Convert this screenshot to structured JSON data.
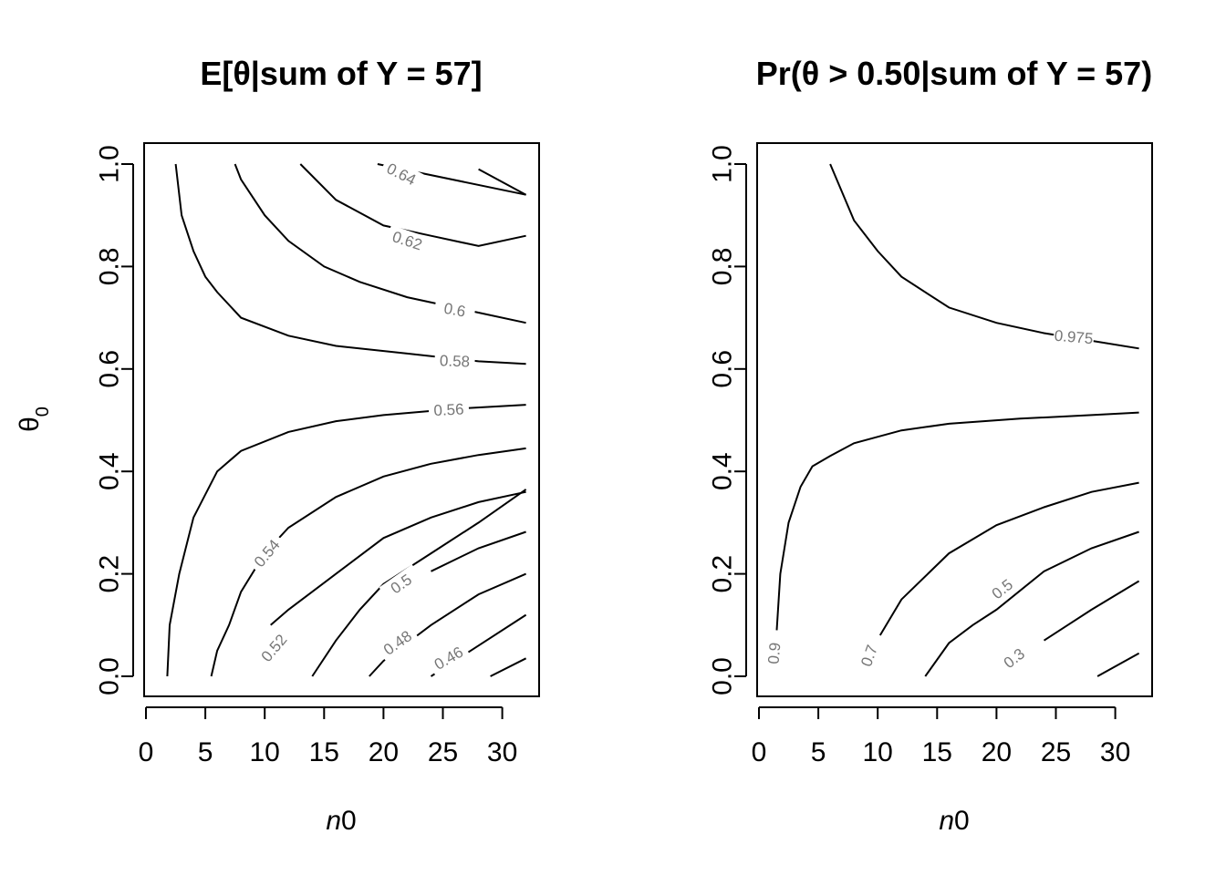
{
  "chart_data": [
    {
      "type": "contour",
      "title": "E[θ|sum of Y = 57]",
      "xlabel": "n0",
      "ylabel": "θ0",
      "xlim": [
        0,
        32
      ],
      "ylim": [
        0,
        1
      ],
      "xticks": [
        "0",
        "5",
        "10",
        "15",
        "20",
        "25",
        "30"
      ],
      "yticks": [
        "0.0",
        "0.2",
        "0.4",
        "0.6",
        "0.8",
        "1.0"
      ],
      "contours": [
        {
          "level": "0.64",
          "label": "0.64",
          "points": [
            [
              19.5,
              1.0
            ],
            [
              32,
              0.94
            ]
          ],
          "label_pos": [
            21.5,
            0.98
          ],
          "label_angle": 27
        },
        {
          "level": "0.62",
          "label": "0.62",
          "points": [
            [
              13,
              1.0
            ],
            [
              16,
              0.93
            ],
            [
              20,
              0.88
            ],
            [
              24,
              0.86
            ],
            [
              28,
              0.84
            ],
            [
              32,
              0.86
            ]
          ],
          "label_pos": [
            22,
            0.85
          ],
          "label_angle": 18
        },
        {
          "level": "0.6",
          "label": "0.6",
          "points": [
            [
              7.5,
              1.0
            ],
            [
              8,
              0.97
            ],
            [
              10,
              0.9
            ],
            [
              12,
              0.85
            ],
            [
              15,
              0.8
            ],
            [
              18,
              0.77
            ],
            [
              22,
              0.74
            ],
            [
              26,
              0.72
            ],
            [
              32,
              0.69
            ]
          ],
          "label_pos": [
            26,
            0.715
          ],
          "label_angle": 10
        },
        {
          "level": "0.58",
          "label": "0.58",
          "points": [
            [
              2.5,
              1.0
            ],
            [
              3,
              0.9
            ],
            [
              4,
              0.83
            ],
            [
              5,
              0.78
            ],
            [
              6,
              0.75
            ],
            [
              8,
              0.7
            ],
            [
              12,
              0.665
            ],
            [
              16,
              0.645
            ],
            [
              22,
              0.63
            ],
            [
              28,
              0.615
            ],
            [
              32,
              0.61
            ]
          ],
          "label_pos": [
            26,
            0.615
          ],
          "label_angle": 2
        },
        {
          "level": "0.56",
          "label": "0.56",
          "points": [
            [
              1.8,
              0.0
            ],
            [
              2,
              0.1
            ],
            [
              2.8,
              0.2
            ],
            [
              4,
              0.31
            ],
            [
              6,
              0.4
            ],
            [
              8,
              0.44
            ],
            [
              12,
              0.477
            ],
            [
              16,
              0.498
            ],
            [
              20,
              0.51
            ],
            [
              26,
              0.522
            ],
            [
              32,
              0.53
            ]
          ],
          "label_pos": [
            25.5,
            0.52
          ],
          "label_angle": -3
        },
        {
          "level": "0.54",
          "label": "0.54",
          "points": [
            [
              5.5,
              0.0
            ],
            [
              6,
              0.05
            ],
            [
              7,
              0.1
            ],
            [
              8,
              0.165
            ],
            [
              10,
              0.24
            ],
            [
              12,
              0.29
            ],
            [
              16,
              0.35
            ],
            [
              20,
              0.39
            ],
            [
              24,
              0.415
            ],
            [
              28,
              0.432
            ],
            [
              32,
              0.445
            ]
          ],
          "label_pos": [
            10.2,
            0.24
          ],
          "label_angle": -50
        },
        {
          "level": "0.52",
          "label": "0.52",
          "points": [
            [
              14,
              0.0
            ],
            [
              16,
              0.07
            ],
            [
              18,
              0.13
            ],
            [
              20,
              0.18
            ],
            [
              24,
              0.24
            ],
            [
              28,
              0.3
            ],
            [
              32,
              0.365
            ]
          ],
          "label_pos": [
            10.8,
            0.055
          ],
          "label_angle": -50
        },
        {
          "level": "0.5",
          "label": "0.5",
          "points": [
            [
              18.8,
              0.0
            ],
            [
              20,
              0.03
            ],
            [
              24,
              0.1
            ],
            [
              28,
              0.16
            ],
            [
              32,
              0.2
            ]
          ],
          "label_pos": [
            21.5,
            0.18
          ],
          "label_angle": -35
        },
        {
          "level": "0.48",
          "label": "0.48",
          "points": [
            [
              24,
              0.0
            ],
            [
              28,
              0.06
            ],
            [
              32,
              0.12
            ]
          ],
          "label_pos": [
            21.2,
            0.065
          ],
          "label_angle": -35
        },
        {
          "level": "0.46",
          "label": "0.46",
          "points": [
            [
              29,
              0.0
            ],
            [
              32,
              0.035
            ]
          ],
          "label_pos": [
            25.5,
            0.035
          ],
          "label_angle": -30
        }
      ],
      "extra_segments": [
        {
          "points": [
            [
              10.5,
              0.1
            ],
            [
              12,
              0.13
            ],
            [
              16,
              0.2
            ],
            [
              20,
              0.27
            ],
            [
              24,
              0.31
            ],
            [
              28,
              0.34
            ],
            [
              32,
              0.36
            ]
          ]
        },
        {
          "points": [
            [
              24,
              0.205
            ],
            [
              28,
              0.25
            ],
            [
              32,
              0.282
            ]
          ]
        },
        {
          "points": [
            [
              28,
              0.99
            ],
            [
              32,
              0.94
            ]
          ]
        }
      ]
    },
    {
      "type": "contour",
      "title": "Pr(θ > 0.50|sum of Y = 57)",
      "xlabel": "n0",
      "ylabel": "",
      "xlim": [
        0,
        32
      ],
      "ylim": [
        0,
        1
      ],
      "xticks": [
        "0",
        "5",
        "10",
        "15",
        "20",
        "25",
        "30"
      ],
      "yticks": [
        "0.0",
        "0.2",
        "0.4",
        "0.6",
        "0.8",
        "1.0"
      ],
      "contours": [
        {
          "level": "0.975",
          "label": "0.975",
          "points": [
            [
              6,
              1.0
            ],
            [
              8,
              0.89
            ],
            [
              10,
              0.83
            ],
            [
              12,
              0.78
            ],
            [
              16,
              0.72
            ],
            [
              20,
              0.69
            ],
            [
              24,
              0.67
            ],
            [
              28,
              0.655
            ],
            [
              32,
              0.64
            ]
          ],
          "label_pos": [
            26.5,
            0.662
          ],
          "label_angle": 5
        },
        {
          "level": "0.9",
          "label": "0.9",
          "points": [
            [
              1.5,
              0.09
            ],
            [
              1.8,
              0.2
            ],
            [
              2.5,
              0.3
            ],
            [
              3.5,
              0.37
            ],
            [
              4.5,
              0.41
            ],
            [
              6,
              0.43
            ],
            [
              8,
              0.455
            ],
            [
              12,
              0.48
            ],
            [
              16,
              0.493
            ],
            [
              22,
              0.503
            ],
            [
              28,
              0.51
            ],
            [
              32,
              0.515
            ]
          ],
          "label_pos": [
            1.3,
            0.045
          ],
          "label_angle": -85
        },
        {
          "level": "0.7",
          "label": "0.7",
          "points": [
            [
              10.2,
              0.08
            ],
            [
              12,
              0.15
            ],
            [
              16,
              0.24
            ],
            [
              20,
              0.295
            ],
            [
              24,
              0.33
            ],
            [
              28,
              0.36
            ],
            [
              32,
              0.378
            ]
          ],
          "label_pos": [
            9.3,
            0.04
          ],
          "label_angle": -70
        },
        {
          "level": "0.5",
          "label": "0.5",
          "points": [
            [
              14,
              0.0
            ],
            [
              16,
              0.065
            ],
            [
              18,
              0.1
            ],
            [
              20,
              0.13
            ],
            [
              24,
              0.205
            ],
            [
              28,
              0.25
            ],
            [
              32,
              0.282
            ]
          ],
          "label_pos": [
            20.5,
            0.17
          ],
          "label_angle": -38
        },
        {
          "level": "0.3",
          "label": "0.3",
          "points": [
            [
              24,
              0.07
            ],
            [
              26,
              0.1
            ],
            [
              28,
              0.13
            ],
            [
              32,
              0.186
            ]
          ],
          "label_pos": [
            21.5,
            0.035
          ],
          "label_angle": -38
        }
      ],
      "extra_segments": [
        {
          "points": [
            [
              28.5,
              0.0
            ],
            [
              32,
              0.045
            ]
          ]
        }
      ]
    }
  ],
  "colors": {
    "line": "#000000",
    "label": "#777777"
  }
}
